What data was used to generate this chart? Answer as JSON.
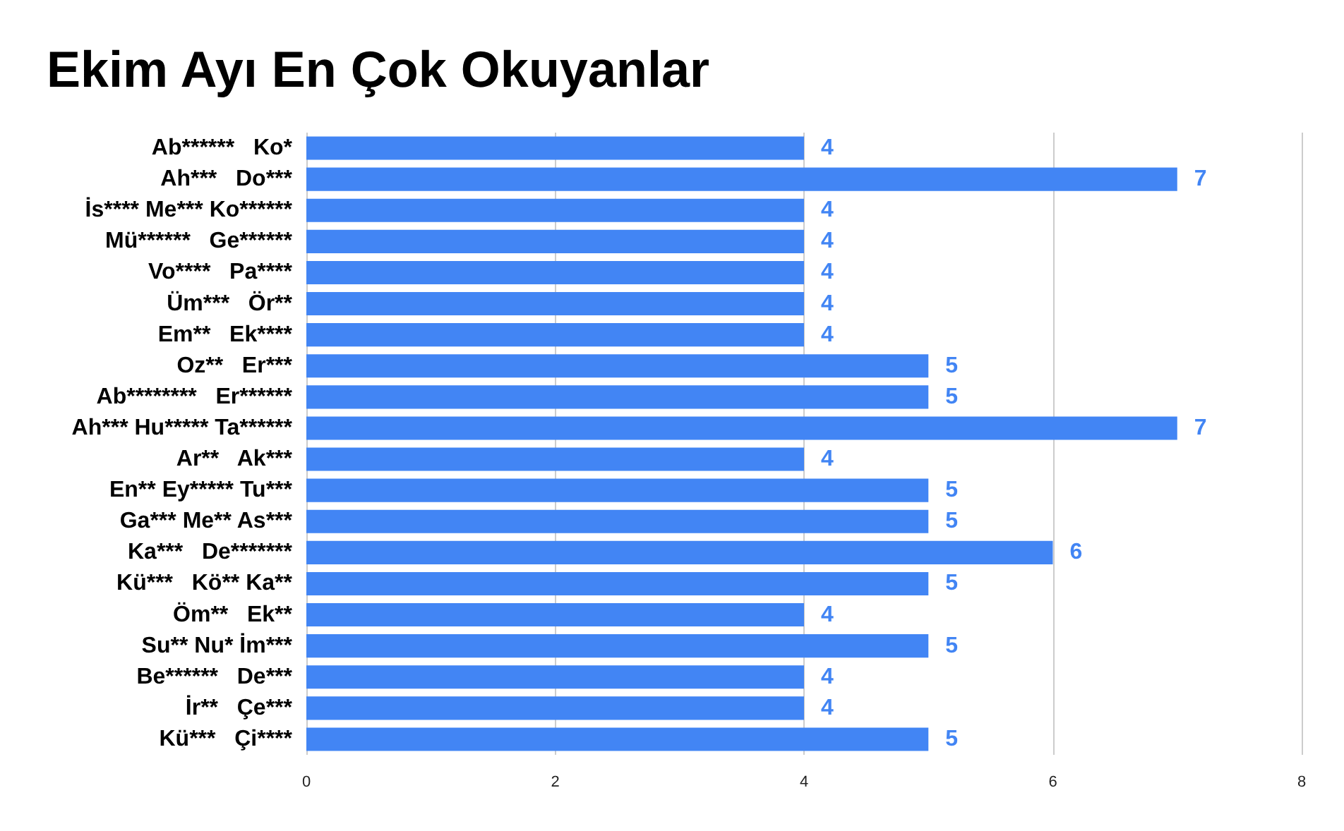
{
  "chart_data": {
    "type": "bar",
    "title": "Ekim Ayı En Çok Okuyanlar",
    "orientation": "horizontal",
    "categories": [
      "Ab******   Ko*",
      "Ah***   Do***",
      "İs**** Me*** Ko******",
      "Mü******   Ge******",
      "Vo****   Pa****",
      "Üm***   Ör**",
      "Em**   Ek****",
      "Oz**   Er***",
      "Ab********   Er******",
      "Ah*** Hu***** Ta******",
      "Ar**   Ak***",
      "En** Ey***** Tu***",
      "Ga*** Me** As***",
      "Ka***   De*******",
      "Kü***   Kö** Ka**",
      "Öm**   Ek**",
      "Su** Nu* İm***",
      "Be******   De***",
      "İr**   Çe***",
      "Kü***   Çi****"
    ],
    "values": [
      4,
      7,
      4,
      4,
      4,
      4,
      4,
      5,
      5,
      7,
      4,
      5,
      5,
      6,
      5,
      4,
      5,
      4,
      4,
      5
    ],
    "color": "#4285f4",
    "xlim": [
      0,
      8
    ],
    "xticks": [
      0,
      2,
      4,
      6,
      8
    ],
    "grid": "x",
    "data_labels": true
  }
}
